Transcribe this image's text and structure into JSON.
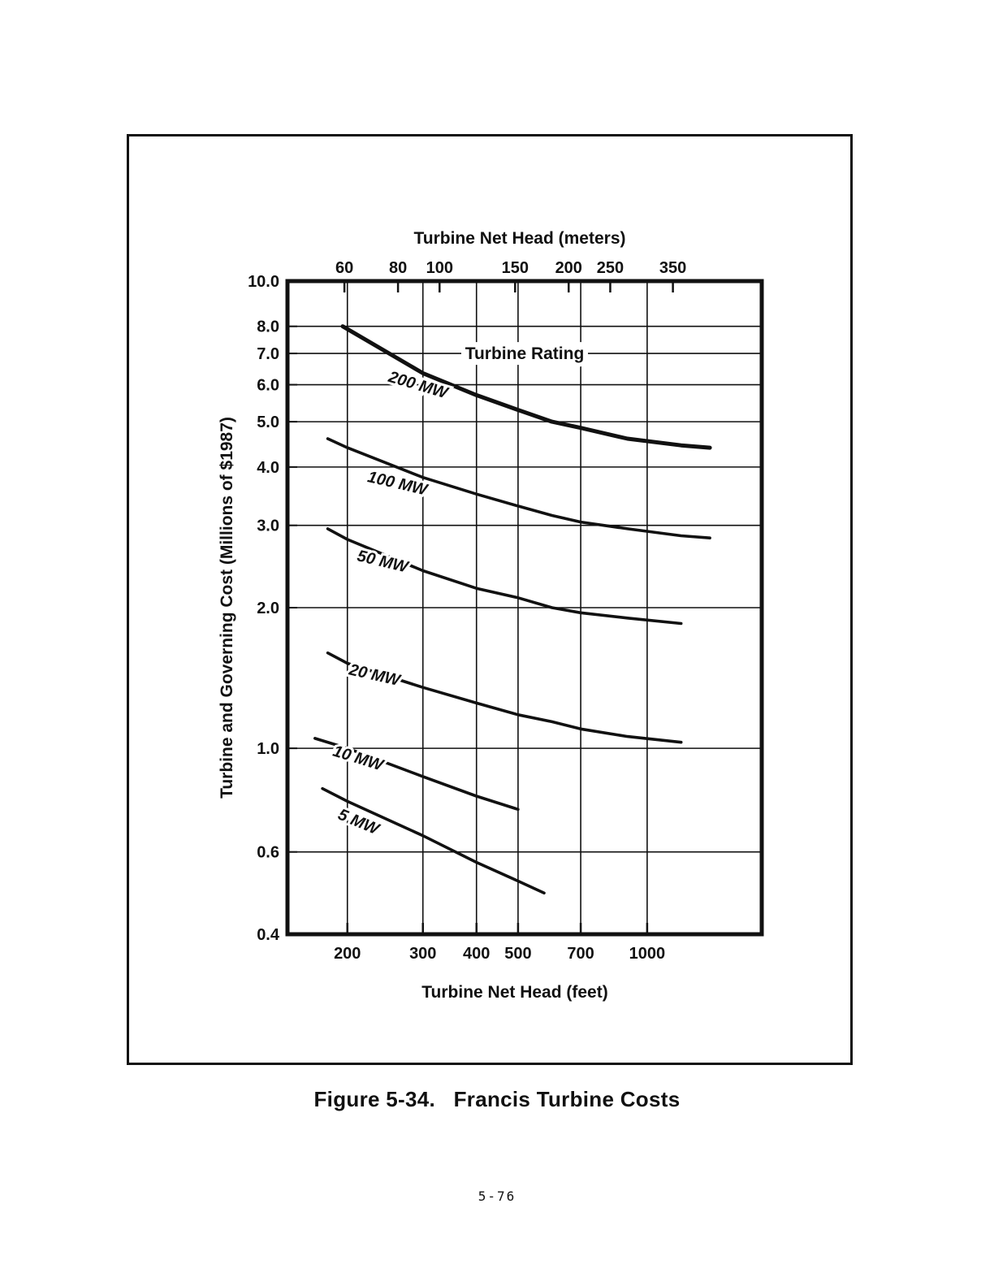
{
  "chart_data": {
    "type": "line",
    "title": "",
    "xlabel": "Turbine Net Head (feet)",
    "x2label": "Turbine Net Head (meters)",
    "ylabel": "Turbine and Governing Cost (Millions of $1987)",
    "xscale": "log",
    "yscale": "log",
    "xlim": [
      145,
      1850
    ],
    "ylim": [
      0.4,
      10.0
    ],
    "grid": true,
    "xticks": [
      {
        "value": 200,
        "label": "200"
      },
      {
        "value": 300,
        "label": "300"
      },
      {
        "value": 400,
        "label": "400"
      },
      {
        "value": 500,
        "label": "500"
      },
      {
        "value": 700,
        "label": "700"
      },
      {
        "value": 1000,
        "label": "1000"
      }
    ],
    "x2ticks": [
      {
        "value": 60,
        "label": "60"
      },
      {
        "value": 80,
        "label": "80"
      },
      {
        "value": 100,
        "label": "100"
      },
      {
        "value": 150,
        "label": "150"
      },
      {
        "value": 200,
        "label": "200"
      },
      {
        "value": 250,
        "label": "250"
      },
      {
        "value": 350,
        "label": "350"
      }
    ],
    "yticks": [
      {
        "value": 10.0,
        "label": "10.0"
      },
      {
        "value": 8.0,
        "label": "8.0"
      },
      {
        "value": 7.0,
        "label": "7.0"
      },
      {
        "value": 6.0,
        "label": "6.0"
      },
      {
        "value": 5.0,
        "label": "5.0"
      },
      {
        "value": 4.0,
        "label": "4.0"
      },
      {
        "value": 3.0,
        "label": "3.0"
      },
      {
        "value": 2.0,
        "label": "2.0"
      },
      {
        "value": 1.0,
        "label": "1.0"
      },
      {
        "value": 0.6,
        "label": "0.6"
      },
      {
        "value": 0.4,
        "label": "0.4"
      }
    ],
    "legend_title": "Turbine Rating",
    "series": [
      {
        "name": "200 MW",
        "label_at": [
          290,
          5.85
        ],
        "x": [
          195,
          300,
          400,
          500,
          600,
          700,
          900,
          1200,
          1400
        ],
        "y": [
          8.0,
          6.35,
          5.7,
          5.3,
          5.0,
          4.85,
          4.6,
          4.45,
          4.4
        ]
      },
      {
        "name": "100 MW",
        "label_at": [
          260,
          3.6
        ],
        "x": [
          180,
          200,
          300,
          400,
          500,
          600,
          700,
          900,
          1200,
          1400
        ],
        "y": [
          4.6,
          4.4,
          3.8,
          3.5,
          3.3,
          3.15,
          3.05,
          2.95,
          2.85,
          2.82
        ]
      },
      {
        "name": "50 MW",
        "label_at": [
          240,
          2.45
        ],
        "x": [
          180,
          200,
          300,
          400,
          500,
          600,
          700,
          900,
          1200
        ],
        "y": [
          2.95,
          2.8,
          2.4,
          2.2,
          2.1,
          2.0,
          1.95,
          1.9,
          1.85
        ]
      },
      {
        "name": "20 MW",
        "label_at": [
          230,
          1.4
        ],
        "x": [
          180,
          200,
          300,
          400,
          500,
          600,
          700,
          900,
          1200
        ],
        "y": [
          1.6,
          1.52,
          1.35,
          1.25,
          1.18,
          1.14,
          1.1,
          1.06,
          1.03
        ]
      },
      {
        "name": "10 MW",
        "label_at": [
          210,
          0.93
        ],
        "x": [
          168,
          200,
          300,
          400,
          500
        ],
        "y": [
          1.05,
          1.0,
          0.87,
          0.79,
          0.74
        ]
      },
      {
        "name": "5 MW",
        "label_at": [
          210,
          0.68
        ],
        "x": [
          175,
          200,
          300,
          400,
          500,
          575
        ],
        "y": [
          0.82,
          0.77,
          0.65,
          0.57,
          0.52,
          0.49
        ]
      }
    ]
  },
  "caption": "Figure 5-34.   Francis Turbine Costs",
  "page_number": "5-76"
}
